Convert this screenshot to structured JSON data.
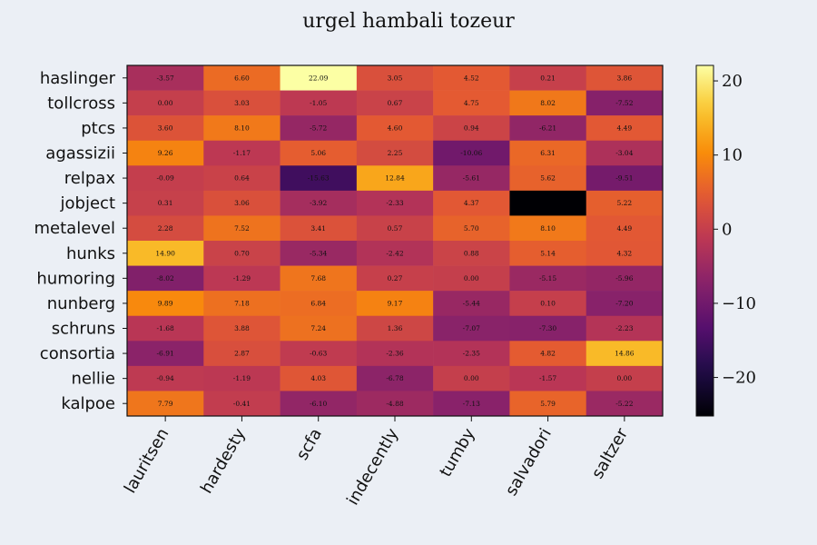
{
  "chart_data": {
    "type": "heatmap",
    "title": "urgel hambali tozeur",
    "rows": [
      "haslinger",
      "tollcross",
      "ptcs",
      "agassizii",
      "relpax",
      "jobject",
      "metalevel",
      "hunks",
      "humoring",
      "nunberg",
      "schruns",
      "consortia",
      "nellie",
      "kalpoe"
    ],
    "columns": [
      "lauritsen",
      "hardesty",
      "scfa",
      "indecently",
      "tumby",
      "salvadori",
      "saltzer"
    ],
    "values": [
      [
        -3.57,
        6.6,
        22.09,
        3.05,
        4.52,
        0.21,
        3.86
      ],
      [
        0.0,
        3.03,
        -1.05,
        0.67,
        4.75,
        8.02,
        -7.52
      ],
      [
        3.6,
        8.1,
        -5.72,
        4.6,
        0.94,
        -6.21,
        4.49
      ],
      [
        9.26,
        -1.17,
        5.06,
        2.25,
        -10.06,
        6.31,
        -3.04
      ],
      [
        -0.09,
        0.64,
        -15.63,
        12.84,
        -5.61,
        5.62,
        -9.51
      ],
      [
        0.31,
        3.06,
        -3.92,
        -2.33,
        4.37,
        null,
        5.22
      ],
      [
        2.28,
        7.52,
        3.41,
        0.57,
        5.7,
        8.1,
        4.49
      ],
      [
        14.9,
        0.7,
        -5.34,
        -2.42,
        0.88,
        5.14,
        4.32
      ],
      [
        -8.02,
        -1.29,
        7.68,
        0.27,
        0.0,
        -5.15,
        -5.96
      ],
      [
        9.89,
        7.18,
        6.84,
        9.17,
        -5.44,
        0.1,
        -7.2
      ],
      [
        -1.68,
        3.88,
        7.24,
        1.36,
        -7.07,
        -7.3,
        -2.23
      ],
      [
        -6.91,
        2.87,
        -0.63,
        -2.36,
        -2.35,
        4.82,
        14.86
      ],
      [
        -0.94,
        -1.19,
        4.03,
        -6.78,
        0.0,
        -1.57,
        0.0
      ],
      [
        7.79,
        -0.41,
        -6.1,
        -4.88,
        -7.13,
        5.79,
        -5.22
      ]
    ],
    "value_format": "2 decimals",
    "colormap": "inferno",
    "vmin": -25.2,
    "vmax": 22.09,
    "colorbar_ticks": [
      "20",
      "10",
      "0",
      "−10",
      "−20"
    ],
    "colorbar_tick_values": [
      20,
      10,
      0,
      -10,
      -20
    ],
    "grid": false,
    "background": "#ebeff5"
  }
}
